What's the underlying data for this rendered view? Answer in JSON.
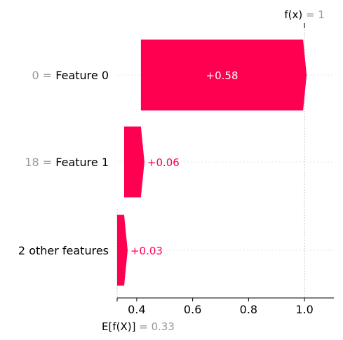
{
  "chart_data": {
    "type": "waterfall",
    "fx": {
      "label_prefix": "f(x)",
      "eq": " = ",
      "value": "1",
      "x": 1.0
    },
    "base": {
      "label_prefix": "E[f(X)]",
      "eq": " = ",
      "value": "0.33",
      "x": 0.33
    },
    "rows": [
      {
        "value_label": "0",
        "eq": " = ",
        "feature": "Feature 0",
        "start": 0.415,
        "end": 0.995,
        "contribution": "+0.58"
      },
      {
        "value_label": "18",
        "eq": " = ",
        "feature": "Feature 1",
        "start": 0.355,
        "end": 0.415,
        "contribution": "+0.06"
      },
      {
        "value_label": "",
        "eq": "",
        "feature": "2 other features",
        "start": 0.33,
        "end": 0.355,
        "contribution": "+0.03"
      }
    ],
    "xticks": [
      0.4,
      0.6,
      0.8,
      1.0
    ],
    "xtick_labels": [
      "0.4",
      "0.6",
      "0.8",
      "1.0"
    ],
    "xlim": [
      0.33,
      1.1
    ],
    "colors": {
      "positive": "#ff0051",
      "muted": "#999999",
      "text": "#000000",
      "grid": "#e6e6e6"
    }
  }
}
